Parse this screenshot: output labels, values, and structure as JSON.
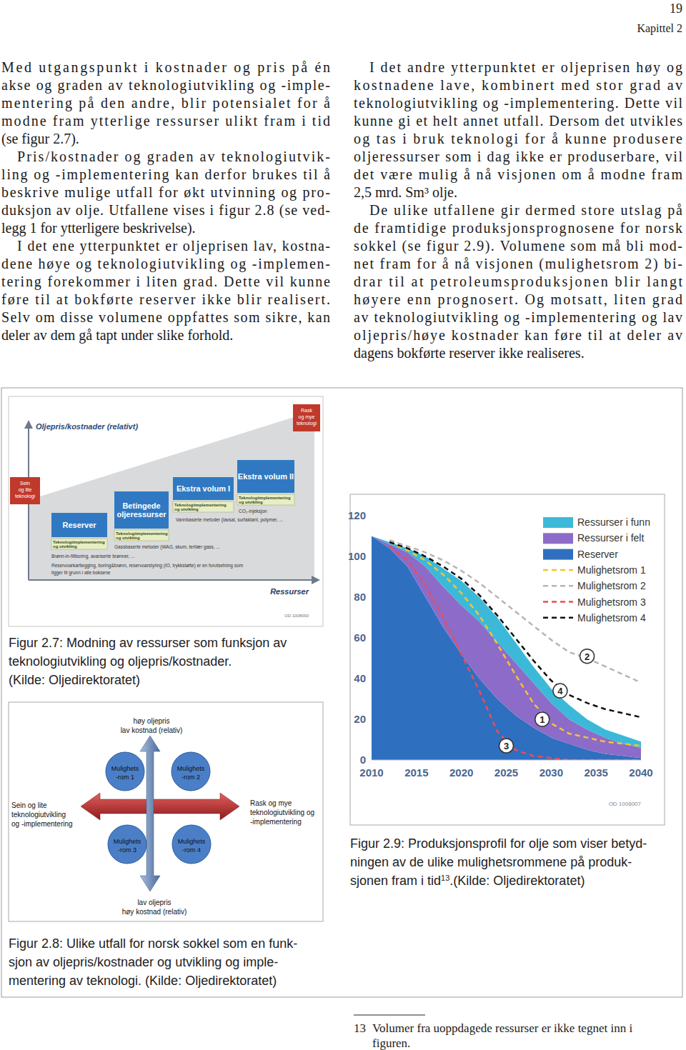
{
  "header": {
    "page_number": "19",
    "chapter": "Kapittel 2"
  },
  "columns": [
    {
      "paragraphs": [
        {
          "lines": [
            "Med utgangspunkt i kostnader og pris på én",
            "akse og graden av teknologiutvikling og -imple-",
            "mentering på den andre, blir potensialet for å",
            "modne fram ytterlige ressurser ulikt fram i tid",
            "(se figur 2.7)."
          ]
        },
        {
          "lines": [
            "Pris/kostnader og graden av teknologiutvik-",
            "ling og -implementering kan derfor brukes til å",
            "beskrive mulige utfall for økt utvinning og pro-",
            "duksjon av olje. Utfallene vises i figur 2.8 (se ved-",
            "legg 1 for ytterligere beskrivelse)."
          ]
        },
        {
          "lines": [
            "I det ene ytterpunktet er oljeprisen lav, kostna-",
            "dene høye og teknologiutvikling og -implemen-",
            "tering forekommer i liten grad. Dette vil kunne",
            "føre til at bokførte reserver ikke blir realisert.",
            "Selv om disse volumene oppfattes som sikre, kan",
            "deler av dem gå tapt under slike forhold."
          ]
        }
      ]
    },
    {
      "paragraphs": [
        {
          "lines": [
            "I det andre ytterpunktet er oljeprisen høy og",
            "kostnadene lave, kombinert med stor grad av",
            "teknologiutvikling og -implementering. Dette vil",
            "kunne gi et helt annet utfall. Dersom det utvikles",
            "og tas i bruk teknologi for å kunne produsere",
            "oljeressurser som i dag ikke er produserbare, vil",
            "det være mulig å nå visjonen om å modne fram",
            "2,5 mrd. Sm³ olje."
          ]
        },
        {
          "lines": [
            "De ulike utfallene gir dermed store utslag på",
            "de framtidige produksjonsprognosene for norsk",
            "sokkel (se figur 2.9). Volumene som må bli mod-",
            "net fram for å nå visjonen (mulighetsrom 2) bi-",
            "drar til at petroleumsproduksjonen blir langt",
            "høyere enn prognosert. Og motsatt, liten grad",
            "av teknologiutvikling og -implementering og lav",
            "oljepris/høye kostnader kan føre til at deler av",
            "dagens bokførte reserver ikke realiseres."
          ]
        }
      ]
    }
  ],
  "figure_2_7": {
    "y_label": "Oljepris/kostnader (relativt)",
    "x_label": "Ressurser",
    "slow_tech": [
      "Sein",
      "og lite",
      "teknologi"
    ],
    "fast_tech": [
      "Rask",
      "og mye",
      "teknologi"
    ],
    "boxes": [
      {
        "lines": [
          "Reserver"
        ]
      },
      {
        "lines": [
          "Betingede",
          "oljeressurser"
        ]
      },
      {
        "lines": [
          "Ekstra volum I"
        ]
      },
      {
        "lines": [
          "Ekstra volum II"
        ]
      }
    ],
    "tech_labels": [
      [
        "Teknologiimplementering",
        "og utvikling"
      ],
      [
        "Teknologiimplementering",
        "og utvikling"
      ],
      [
        "Teknologiimplementering",
        "og utvikling"
      ],
      [
        "Teknologiimplementering",
        "og utvikling"
      ]
    ],
    "methods": [
      "CO₂-injeksjon",
      "Vannbaserte metoder (lavsal, surfaktant, polymer, ...",
      "Gassbaserte metoder (WAG, skum, tertiær gass, ...",
      "Brønn-in-fillboring, avanserte brønner, ..."
    ],
    "foundation": [
      "Reservoarkartlegging, boring&brønn, reservoarstyring (IO, trykkstøtte) er en forutsetning som",
      "ligger til grunn i alle boksene"
    ],
    "code": "OD 1008090",
    "caption": [
      "Figur 2.7: Modning av ressurser som funksjon av",
      "teknologiutvikling og oljepris/kostnader.",
      "(Kilde: Oljedirektoratet)"
    ]
  },
  "figure_2_8": {
    "top": [
      "høy oljepris",
      "lav kostnad (relativ)"
    ],
    "bottom": [
      "lav oljepris",
      "høy kostnad (relativ)"
    ],
    "left": [
      "Sein og lite",
      "teknologiutvikling",
      "og -implementering"
    ],
    "right": [
      "Rask og mye",
      "teknologiutvikling og",
      "-implementering"
    ],
    "circles": [
      [
        "Mulighets",
        "-rom 1"
      ],
      [
        "Mulighets",
        "-rom 2"
      ],
      [
        "Mulighets",
        "-rom 3"
      ],
      [
        "Mulighets",
        "-rom 4"
      ]
    ],
    "caption": [
      "Figur 2.8: Ulike utfall for norsk sokkel som en funk-",
      "sjon av oljepris/kostnader og utvikling og imple-",
      "mentering av teknologi. (Kilde: Oljedirektoratet)"
    ]
  },
  "figure_2_9": {
    "code": "OD 1008007",
    "caption": {
      "lines": [
        "Figur 2.9: Produksjonsprofil for olje som viser betyd-",
        "ningen av de ulike mulighetsrommene på produk-"
      ],
      "last": {
        "text": "sjonen fram i tid",
        "sup": "13",
        "after": ".(Kilde: Oljedirektoratet)"
      }
    }
  },
  "chart_data": {
    "type": "area",
    "stacked": true,
    "legend": "upper right",
    "grid": false,
    "x": [
      2010,
      2012,
      2014,
      2016,
      2018,
      2020,
      2022,
      2024,
      2026,
      2028,
      2030,
      2032,
      2034,
      2036,
      2038,
      2040
    ],
    "xlim": [
      2010,
      2040
    ],
    "xticks": [
      2010,
      2015,
      2020,
      2025,
      2030,
      2035,
      2040
    ],
    "ylim": [
      0,
      120
    ],
    "yticks": [
      0,
      20,
      40,
      60,
      80,
      100,
      120
    ],
    "series": [
      {
        "name": "Ressurser i funn",
        "type": "area",
        "color": "#3cb9d9",
        "values": [
          0,
          1,
          2,
          5,
          9,
          12,
          12,
          12,
          10,
          8,
          7,
          7,
          5,
          4,
          4,
          3
        ]
      },
      {
        "name": "Ressurser i felt",
        "type": "area",
        "color": "#8c6cc8",
        "values": [
          0,
          2,
          7,
          15,
          20,
          24,
          28,
          28,
          26,
          22,
          17,
          12,
          10,
          8,
          6,
          5
        ]
      },
      {
        "name": "Reserver",
        "type": "area",
        "color": "#2f6fbf",
        "values": [
          110,
          104,
          95,
          80,
          65,
          52,
          40,
          30,
          22,
          16,
          11,
          8,
          5,
          3,
          2,
          1
        ]
      },
      {
        "name": "Mulighetsrom 1",
        "type": "line",
        "line_style": "dashed",
        "color": "#f5c431",
        "values": [
          null,
          107,
          103,
          98,
          91,
          82,
          71,
          57,
          42,
          28,
          18,
          13,
          11,
          9,
          8,
          7
        ]
      },
      {
        "name": "Mulighetsrom 2",
        "type": "line",
        "line_style": "dashed",
        "color": "#b5b5b5",
        "values": [
          null,
          108,
          105,
          102,
          98,
          93,
          87,
          80,
          73,
          66,
          59,
          53,
          50,
          46,
          42,
          38
        ]
      },
      {
        "name": "Mulighetsrom 3",
        "type": "line",
        "line_style": "dashed",
        "color": "#e84d5a",
        "values": [
          null,
          105,
          98,
          86,
          70,
          52,
          34,
          14,
          5,
          2,
          1,
          0,
          0,
          0,
          0,
          0
        ]
      },
      {
        "name": "Mulighetsrom 4",
        "type": "line",
        "line_style": "dashed",
        "color": "#111111",
        "values": [
          null,
          107,
          104,
          100,
          95,
          89,
          81,
          71,
          60,
          49,
          39,
          32,
          28,
          25,
          23,
          21
        ]
      }
    ],
    "annotations": [
      {
        "text": "2",
        "x": 2034,
        "y": 51
      },
      {
        "text": "4",
        "x": 2031,
        "y": 34
      },
      {
        "text": "1",
        "x": 2029,
        "y": 20
      },
      {
        "text": "3",
        "x": 2025,
        "y": 7
      }
    ]
  },
  "footnote": {
    "number": "13",
    "lines": [
      "Volumer fra uoppdagede ressurser er ikke tegnet inn i",
      "figuren."
    ]
  }
}
